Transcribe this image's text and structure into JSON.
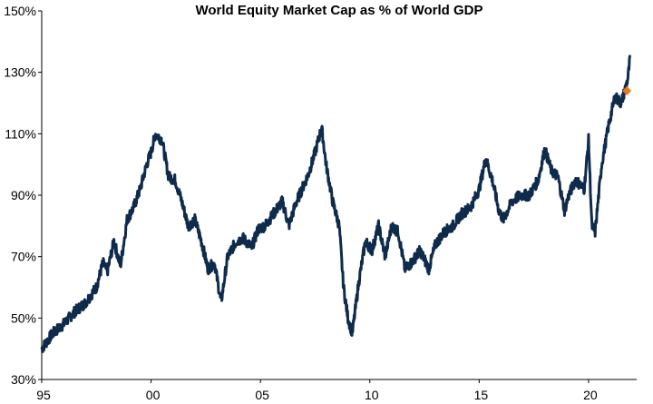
{
  "chart_data": {
    "type": "line",
    "title": "World Equity Market Cap as % of World GDP",
    "xlabel": "",
    "ylabel": "",
    "xlim": [
      1995,
      2022.2
    ],
    "ylim": [
      30,
      150
    ],
    "y_ticks": [
      30,
      50,
      70,
      90,
      110,
      130,
      150
    ],
    "y_tick_labels": [
      "30%",
      "50%",
      "70%",
      "90%",
      "110%",
      "130%",
      "150%"
    ],
    "x_ticks": [
      1995,
      2000,
      2005,
      2010,
      2015,
      2020
    ],
    "x_tick_labels": [
      "95",
      "00",
      "05",
      "10",
      "15",
      "20"
    ],
    "grid": false,
    "series": [
      {
        "color": "#0f2b4c",
        "x": [
          1995.0,
          1995.5,
          1996.0,
          1996.5,
          1997.0,
          1997.5,
          1997.8,
          1998.0,
          1998.3,
          1998.6,
          1998.9,
          1999.2,
          1999.5,
          1999.8,
          2000.0,
          2000.2,
          2000.5,
          2000.8,
          2001.1,
          2001.4,
          2001.7,
          2002.0,
          2002.3,
          2002.6,
          2002.9,
          2003.2,
          2003.5,
          2003.9,
          2004.2,
          2004.6,
          2004.9,
          2005.2,
          2005.6,
          2006.0,
          2006.3,
          2006.6,
          2006.9,
          2007.2,
          2007.5,
          2007.8,
          2008.0,
          2008.3,
          2008.6,
          2008.8,
          2009.0,
          2009.2,
          2009.5,
          2009.8,
          2010.1,
          2010.4,
          2010.7,
          2011.0,
          2011.3,
          2011.6,
          2011.9,
          2012.3,
          2012.7,
          2013.0,
          2013.4,
          2013.8,
          2014.2,
          2014.6,
          2015.0,
          2015.3,
          2015.6,
          2015.9,
          2016.1,
          2016.5,
          2016.9,
          2017.3,
          2017.7,
          2018.0,
          2018.3,
          2018.6,
          2018.9,
          2019.1,
          2019.4,
          2019.8,
          2020.0,
          2020.15,
          2020.3,
          2020.6,
          2020.9,
          2021.2,
          2021.5,
          2021.8,
          2021.9
        ],
        "values": [
          40,
          45,
          48,
          52,
          55,
          60,
          68,
          65,
          75,
          67,
          82,
          86,
          92,
          100,
          104,
          110,
          108,
          96,
          95,
          88,
          80,
          82,
          75,
          66,
          68,
          55,
          70,
          75,
          76,
          73,
          79,
          80,
          84,
          88,
          80,
          87,
          92,
          97,
          104,
          112,
          100,
          88,
          80,
          60,
          50,
          45,
          62,
          75,
          72,
          80,
          70,
          80,
          78,
          66,
          68,
          72,
          66,
          74,
          78,
          80,
          84,
          86,
          92,
          102,
          95,
          85,
          82,
          88,
          90,
          90,
          95,
          105,
          98,
          96,
          85,
          90,
          95,
          92,
          108,
          80,
          78,
          100,
          112,
          122,
          120,
          128,
          135
        ]
      }
    ],
    "points": [
      {
        "x": 2021.75,
        "y": 124,
        "color": "#e8781e",
        "shape": "diamond"
      }
    ]
  }
}
